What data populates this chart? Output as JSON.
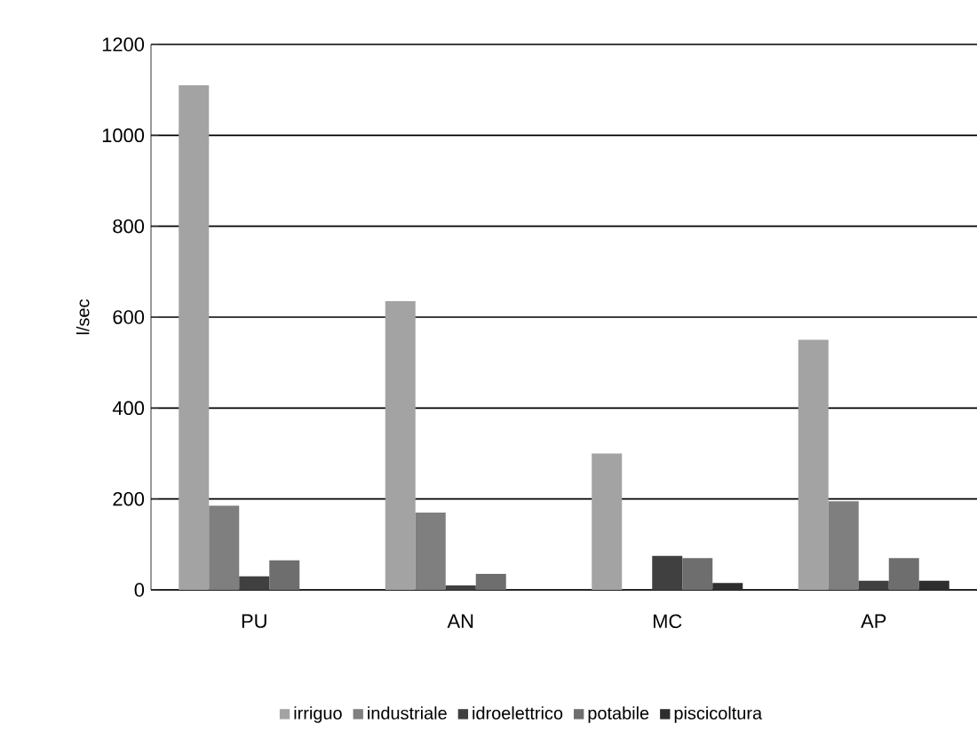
{
  "chart_data": {
    "type": "bar",
    "ylabel": "l/sec",
    "categories": [
      "PU",
      "AN",
      "MC",
      "AP"
    ],
    "series": [
      {
        "name": "irriguo",
        "color": "#a3a3a3",
        "values": [
          1110,
          635,
          300,
          550
        ]
      },
      {
        "name": "industriale",
        "color": "#7f7f7f",
        "values": [
          185,
          170,
          0,
          195
        ]
      },
      {
        "name": "idroelettrico",
        "color": "#404040",
        "values": [
          30,
          10,
          75,
          20
        ]
      },
      {
        "name": "potabile",
        "color": "#6e6e6e",
        "values": [
          65,
          35,
          70,
          70
        ]
      },
      {
        "name": "piscicoltura",
        "color": "#2e2e2e",
        "values": [
          null,
          0,
          15,
          20
        ]
      }
    ],
    "ylim": [
      0,
      1200
    ],
    "yticks": [
      0,
      200,
      400,
      600,
      800,
      1000,
      1200
    ],
    "grid": "y",
    "legend": "bottom"
  }
}
